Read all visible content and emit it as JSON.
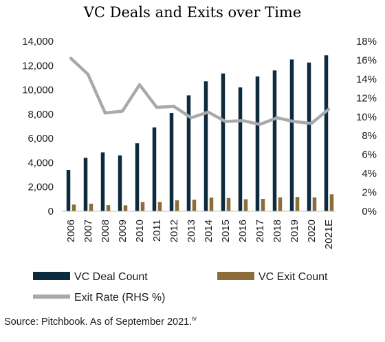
{
  "chart_data": {
    "type": "bar",
    "title": "VC Deals and Exits over Time",
    "categories": [
      "2006",
      "2007",
      "2008",
      "2009",
      "2010",
      "2011",
      "2012",
      "2013",
      "2014",
      "2015",
      "2016",
      "2017",
      "2018",
      "2019",
      "2020",
      "2021E"
    ],
    "series": [
      {
        "name": "VC Deal Count",
        "type": "bar",
        "axis": "left",
        "color": "#0d2b3e",
        "values": [
          3400,
          4400,
          4850,
          4600,
          5600,
          6900,
          8100,
          9550,
          10700,
          11350,
          10200,
          11100,
          11600,
          12500,
          12250,
          12850
        ]
      },
      {
        "name": "VC Exit Count",
        "type": "bar",
        "axis": "left",
        "color": "#8c6d3a",
        "values": [
          550,
          620,
          500,
          490,
          750,
          760,
          900,
          950,
          1120,
          1090,
          990,
          1020,
          1140,
          1180,
          1140,
          1400
        ]
      },
      {
        "name": "Exit Rate (RHS %)",
        "type": "line",
        "axis": "right",
        "color": "#a9a9a9",
        "values": [
          16.2,
          14.5,
          10.4,
          10.6,
          13.4,
          11.0,
          11.1,
          9.9,
          10.5,
          9.5,
          9.6,
          9.2,
          9.9,
          9.5,
          9.3,
          10.8
        ]
      }
    ],
    "yleft": {
      "min": 0,
      "max": 14000,
      "ticks": [
        "0",
        "2,000",
        "4,000",
        "6,000",
        "8,000",
        "10,000",
        "12,000",
        "14,000"
      ]
    },
    "yright": {
      "min": 0,
      "max": 18,
      "ticks": [
        "0%",
        "2%",
        "4%",
        "6%",
        "8%",
        "10%",
        "12%",
        "14%",
        "16%",
        "18%"
      ]
    },
    "grid": false,
    "legend_position": "bottom"
  },
  "source_text": "Source: Pitchbook. As of September 2021.",
  "source_sup": "iv"
}
